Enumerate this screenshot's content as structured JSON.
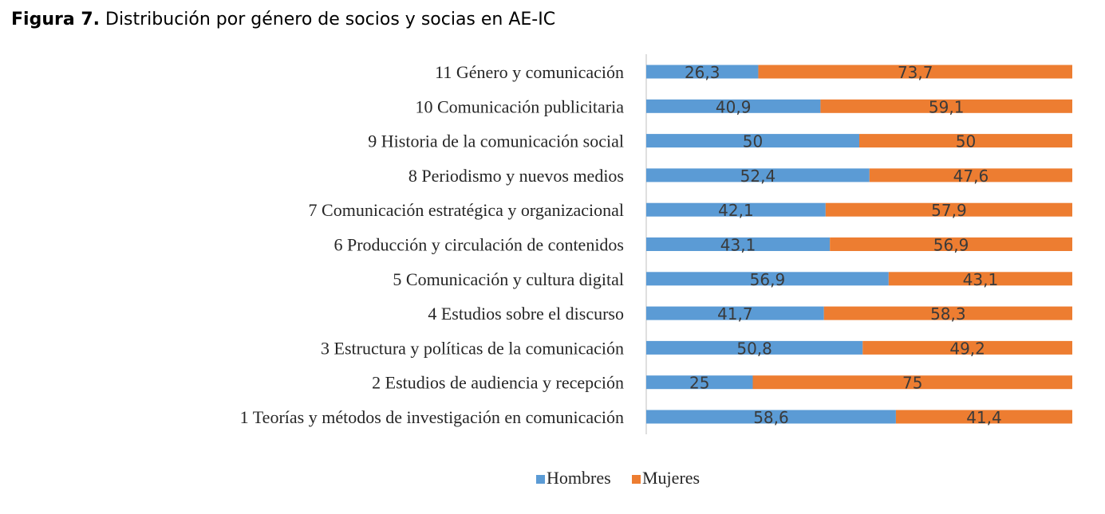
{
  "figure": {
    "label": "Figura 7.",
    "caption": "Distribución por género de socios y socias en AE-IC"
  },
  "chart_data": {
    "type": "bar",
    "orientation": "horizontal",
    "stacked": "percent",
    "categories": [
      "11 Género y comunicación",
      "10 Comunicación publicitaria",
      "9 Historia de la comunicación social",
      "8 Periodismo y nuevos medios",
      "7 Comunicación estratégica y organizacional",
      "6 Producción y circulación de contenidos",
      "5 Comunicación y cultura digital",
      "4 Estudios sobre el discurso",
      "3 Estructura y políticas de la comunicación",
      "2 Estudios de audiencia y recepción",
      "1 Teorías y métodos de investigación en comunicación"
    ],
    "series": [
      {
        "name": "Hombres",
        "color": "#5B9BD5",
        "values": [
          26.3,
          40.9,
          50,
          52.4,
          42.1,
          43.1,
          56.9,
          41.7,
          50.8,
          25,
          58.6
        ],
        "labels": [
          "26,3",
          "40,9",
          "50",
          "52,4",
          "42,1",
          "43,1",
          "56,9",
          "41,7",
          "50,8",
          "25",
          "58,6"
        ]
      },
      {
        "name": "Mujeres",
        "color": "#ED7D31",
        "values": [
          73.7,
          59.1,
          50,
          47.6,
          57.9,
          56.9,
          43.1,
          58.3,
          49.2,
          75,
          41.4
        ],
        "labels": [
          "73,7",
          "59,1",
          "50",
          "47,6",
          "57,9",
          "56,9",
          "43,1",
          "58,3",
          "49,2",
          "75",
          "41,4"
        ]
      }
    ],
    "xlim": [
      0,
      100
    ],
    "grid": false,
    "legend": "bottom"
  }
}
